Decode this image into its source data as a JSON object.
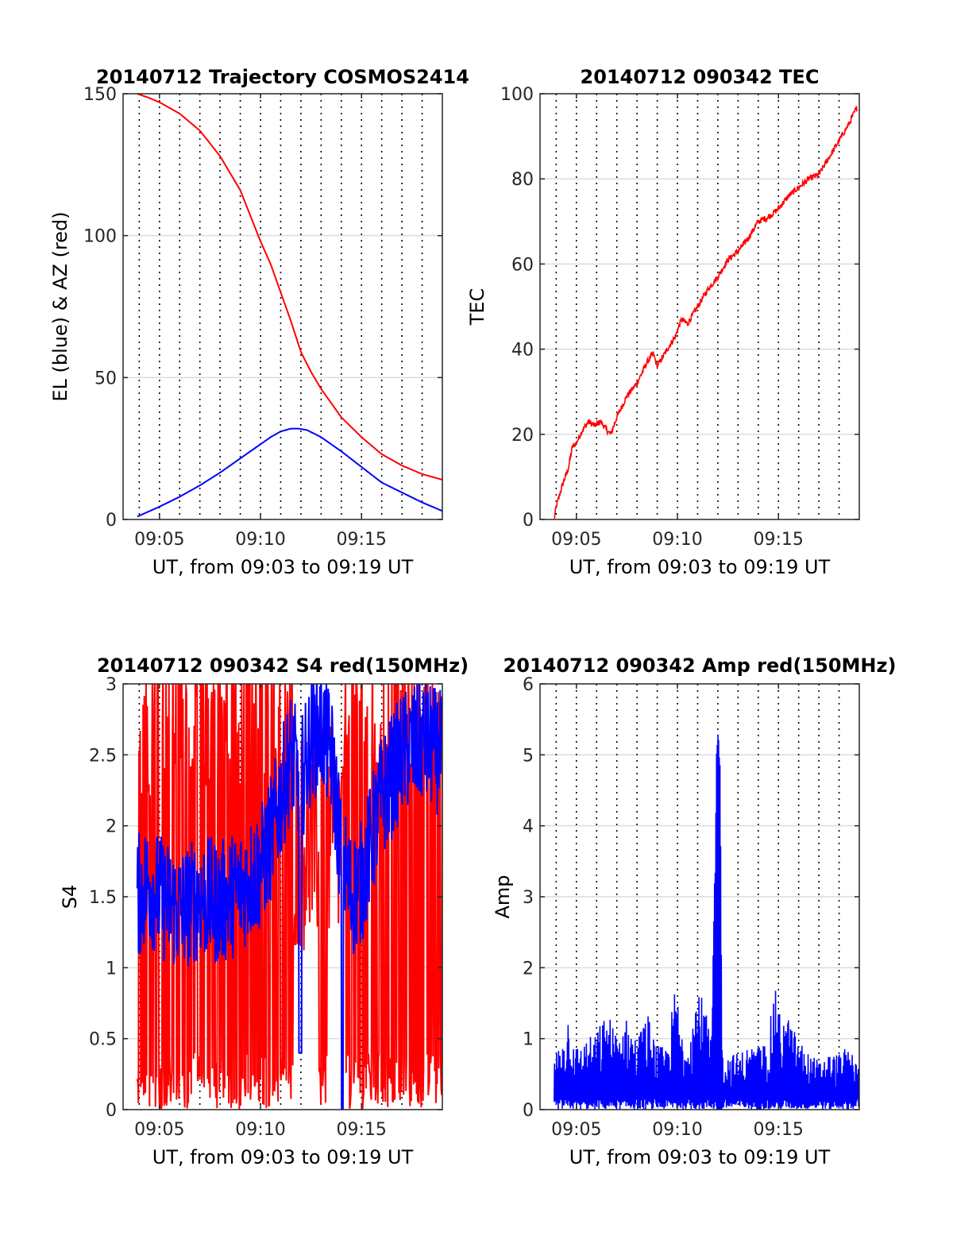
{
  "x_axis": {
    "label": "UT, from 09:03 to 09:19 UT",
    "range_minutes": [
      3.2,
      19.0
    ],
    "tick_values": [
      5,
      10,
      15
    ],
    "tick_labels": [
      "09:05",
      "09:10",
      "09:15"
    ],
    "minor_dotted_grid_minutes": [
      4,
      5,
      6,
      7,
      8,
      9,
      10,
      11,
      12,
      13,
      14,
      15,
      16,
      17,
      18
    ]
  },
  "colors": {
    "red": "#ff0000",
    "blue": "#0000ff",
    "grid": "#dcdcdc",
    "dotted": "#000000"
  },
  "chart_data": [
    {
      "type": "line",
      "title": "20140712 Trajectory COSMOS2414",
      "ylabel": "EL (blue) & AZ (red)",
      "xlabel": "UT, from 09:03 to 09:19 UT",
      "ylim": [
        0,
        150
      ],
      "yticks": [
        0,
        50,
        100,
        150
      ],
      "ytick_labels": [
        "0",
        "50",
        "100",
        "150"
      ],
      "grid": true,
      "series": [
        {
          "color": "red",
          "x": [
            3.9,
            4.5,
            5.0,
            6.0,
            7.0,
            8.0,
            9.0,
            10.0,
            10.5,
            11.0,
            11.5,
            12.0,
            12.5,
            13.0,
            13.5,
            14.0,
            15.0,
            16.0,
            17.0,
            18.0,
            19.0
          ],
          "y": [
            150,
            148.5,
            147,
            143,
            137,
            128,
            116,
            98,
            90,
            80,
            70,
            59,
            52,
            46,
            41,
            36,
            29,
            23,
            19,
            16,
            14
          ]
        },
        {
          "color": "blue",
          "x": [
            3.9,
            5.0,
            6.0,
            7.0,
            8.0,
            9.0,
            10.0,
            10.5,
            11.0,
            11.5,
            11.9,
            12.3,
            13.0,
            14.0,
            15.0,
            16.0,
            17.0,
            18.0,
            19.0
          ],
          "y": [
            1,
            4.5,
            8,
            12,
            16.5,
            21.5,
            26.5,
            29,
            31,
            32,
            32,
            31.5,
            29,
            24,
            18.5,
            13,
            9.5,
            6,
            3
          ]
        }
      ]
    },
    {
      "type": "line",
      "title": "20140712 090342 TEC",
      "ylabel": "TEC",
      "xlabel": "UT, from 09:03 to 09:19 UT",
      "ylim": [
        0,
        100
      ],
      "yticks": [
        0,
        20,
        40,
        60,
        80,
        100
      ],
      "ytick_labels": [
        "0",
        "20",
        "40",
        "60",
        "80",
        "100"
      ],
      "grid": true,
      "series": [
        {
          "color": "red",
          "x": [
            3.9,
            4.0,
            4.3,
            4.6,
            4.8,
            5.0,
            5.3,
            5.6,
            5.9,
            6.2,
            6.5,
            6.7,
            7.0,
            7.5,
            8.0,
            8.3,
            8.5,
            8.8,
            9.0,
            9.5,
            9.9,
            10.2,
            10.5,
            11.0,
            11.5,
            12.0,
            12.5,
            13.0,
            13.5,
            14.0,
            14.5,
            15.0,
            15.5,
            16.0,
            16.5,
            17.0,
            17.5,
            18.0,
            18.5,
            18.9
          ],
          "y": [
            0,
            3,
            8,
            12,
            17,
            18,
            21,
            23,
            22,
            23,
            21,
            20,
            24,
            29,
            32,
            35,
            37,
            39,
            36,
            40,
            43,
            47,
            46,
            50,
            54,
            57,
            61,
            63,
            66,
            70,
            71,
            73,
            76,
            78,
            80,
            81,
            85,
            89,
            93,
            97
          ]
        }
      ]
    },
    {
      "type": "line",
      "title": "20140712 090342 S4 red(150MHz)",
      "ylabel": "S4",
      "xlabel": "UT, from 09:03 to 09:19 UT",
      "ylim": [
        0,
        3
      ],
      "yticks": [
        0,
        0.5,
        1,
        1.5,
        2,
        2.5,
        3
      ],
      "ytick_labels": [
        "0",
        "0.5",
        "1",
        "1.5",
        "2",
        "2.5",
        "3"
      ],
      "grid": true,
      "series": [
        {
          "color": "red",
          "note_values": "high-variance noise spanning 0 to 3, clipped at axis limits",
          "x": [
            3.9,
            19.0
          ],
          "y": [
            0,
            3
          ]
        },
        {
          "color": "blue",
          "x": [
            3.9,
            4.5,
            5.0,
            6.0,
            7.0,
            8.0,
            9.0,
            10.0,
            10.5,
            11.0,
            11.5,
            12.0,
            12.5,
            13.0,
            13.5,
            14.0,
            14.5,
            15.0,
            16.0,
            17.0,
            18.0,
            19.0
          ],
          "y": [
            1.5,
            1.6,
            1.5,
            1.4,
            1.5,
            1.45,
            1.55,
            1.7,
            1.9,
            2.2,
            2.5,
            2.3,
            2.6,
            2.7,
            2.5,
            1.8,
            1.5,
            1.6,
            2.2,
            2.5,
            2.6,
            2.5
          ]
        }
      ]
    },
    {
      "type": "line",
      "title": "20140712 090342 Amp red(150MHz)",
      "ylabel": "Amp",
      "xlabel": "UT, from 09:03 to 09:19 UT",
      "ylim": [
        0,
        6
      ],
      "yticks": [
        0,
        1,
        2,
        3,
        4,
        5,
        6
      ],
      "ytick_labels": [
        "0",
        "1",
        "2",
        "3",
        "4",
        "5",
        "6"
      ],
      "grid": true,
      "series": [
        {
          "color": "blue",
          "x": [
            3.9,
            4.3,
            4.6,
            5.0,
            5.5,
            6.0,
            6.5,
            7.0,
            7.5,
            8.0,
            8.5,
            9.0,
            9.5,
            9.9,
            10.3,
            10.7,
            11.0,
            11.3,
            11.7,
            11.9,
            12.0,
            12.1,
            12.2,
            12.4,
            13.0,
            13.5,
            14.0,
            14.5,
            14.8,
            15.0,
            15.5,
            16.0,
            16.5,
            17.0,
            17.5,
            18.0,
            18.5,
            19.0
          ],
          "peaks": [
            0.8,
            1.0,
            1.4,
            0.9,
            1.0,
            1.1,
            1.4,
            1.1,
            1.3,
            1.0,
            1.4,
            0.9,
            0.9,
            1.8,
            1.0,
            1.3,
            1.8,
            1.5,
            1.0,
            5.6,
            5.4,
            5.5,
            0.9,
            0.8,
            0.8,
            0.9,
            0.9,
            1.0,
            1.8,
            1.4,
            1.3,
            1.0,
            0.8,
            0.7,
            0.8,
            0.8,
            0.9,
            0.6
          ]
        }
      ]
    }
  ]
}
